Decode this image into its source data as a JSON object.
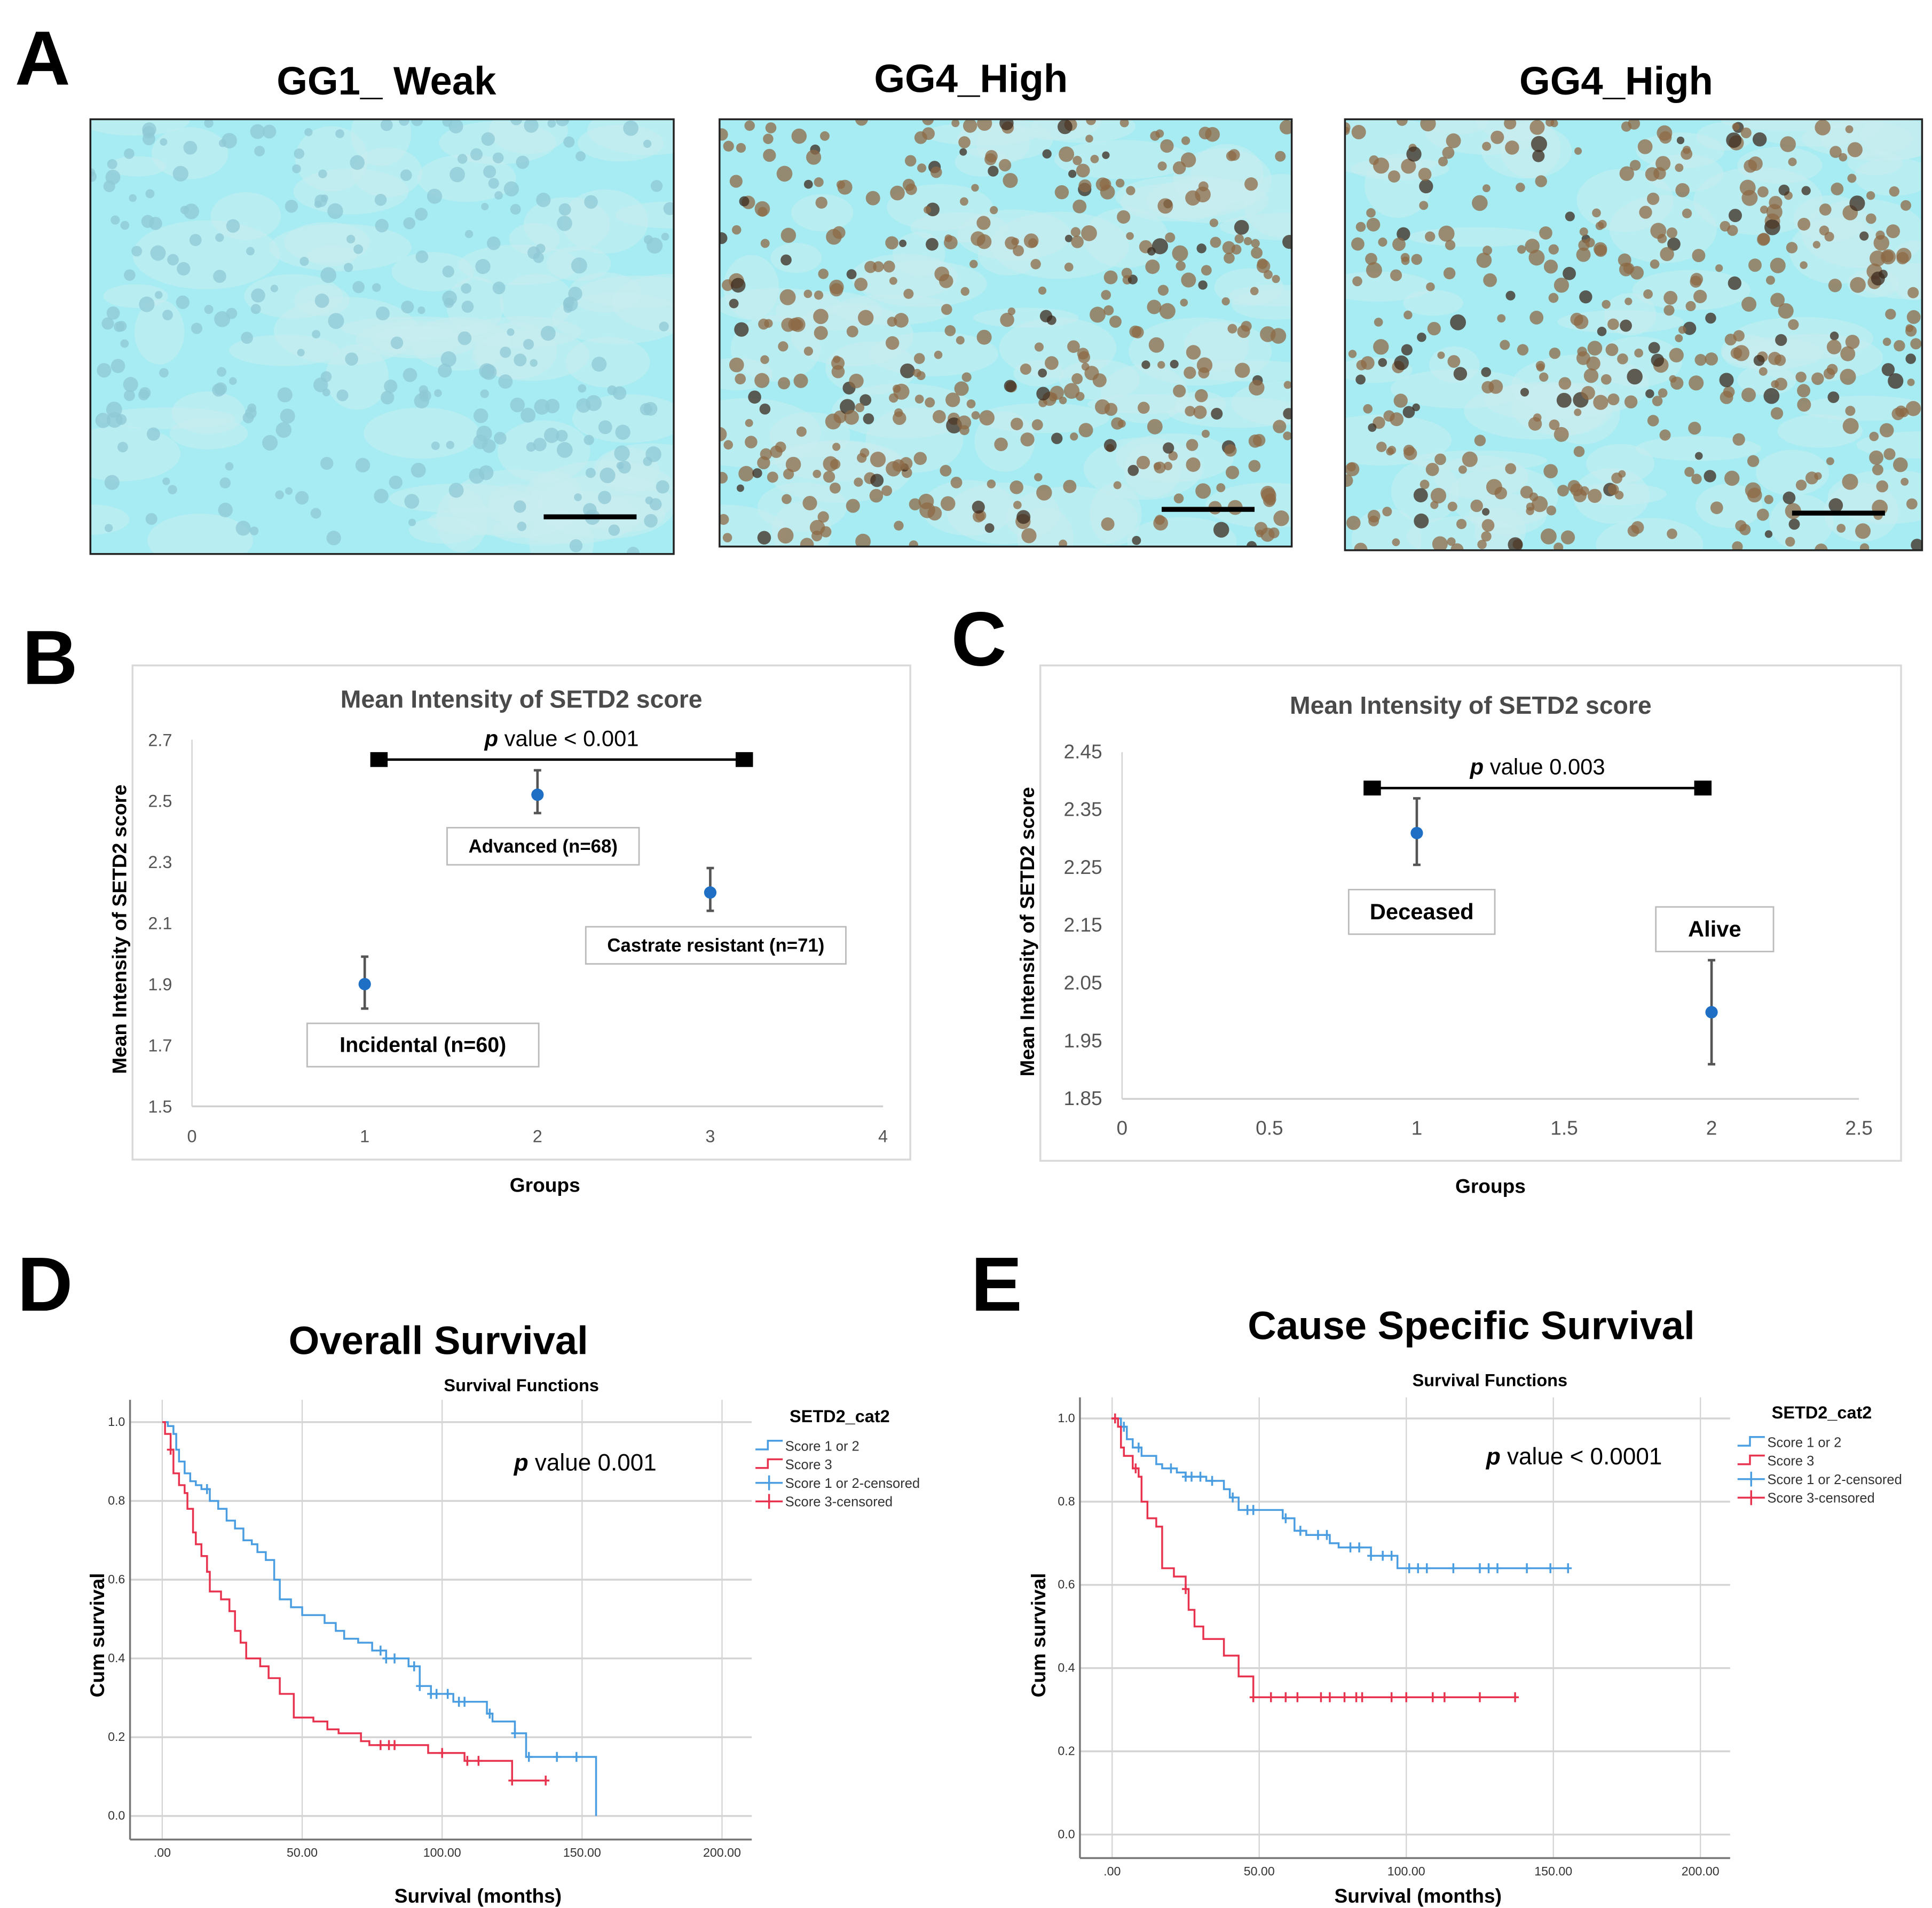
{
  "panel_letters": [
    "A",
    "B",
    "C",
    "D",
    "E"
  ],
  "panel_a": {
    "titles": [
      "GG1_ Weak",
      "GG4_High",
      "GG4_High"
    ],
    "colors": {
      "background": "#a6ecf2",
      "nuclei_weak": "#8fc8d6",
      "nuclei_high": "#8d6a45"
    }
  },
  "chart_data": [
    {
      "panel": "B",
      "type": "scatter",
      "title": "Mean Intensity of SETD2 score",
      "xlabel": "Groups",
      "ylabel": "Mean Intensity of SETD2 score",
      "xlim": [
        0,
        4
      ],
      "ylim": [
        1.5,
        2.7
      ],
      "xticks": [
        "0",
        "1",
        "2",
        "3",
        "4"
      ],
      "yticks": [
        "1.5",
        "1.7",
        "1.9",
        "2.1",
        "2.3",
        "2.5",
        "2.7"
      ],
      "points": [
        {
          "x": 1,
          "y": 1.9,
          "err_low": 1.82,
          "err_high": 1.99,
          "label": "Incidental (n=60)"
        },
        {
          "x": 2,
          "y": 2.52,
          "err_low": 2.46,
          "err_high": 2.6,
          "label": "Advanced (n=68)"
        },
        {
          "x": 3,
          "y": 2.2,
          "err_low": 2.14,
          "err_high": 2.28,
          "label": "Castrate resistant (n=71)"
        }
      ],
      "annotation": {
        "p": "p",
        "text": " value < 0.001"
      },
      "color": "#1f6fc5"
    },
    {
      "panel": "C",
      "type": "scatter",
      "title": "Mean Intensity of SETD2 score",
      "xlabel": "Groups",
      "ylabel": "Mean Intensity of SETD2 score",
      "xlim": [
        0,
        2.5
      ],
      "ylim": [
        1.85,
        2.45
      ],
      "xticks": [
        "0",
        "0.5",
        "1",
        "1.5",
        "2",
        "2.5"
      ],
      "yticks": [
        "1.85",
        "1.95",
        "2.05",
        "2.15",
        "2.25",
        "2.35",
        "2.45"
      ],
      "points": [
        {
          "x": 1,
          "y": 2.31,
          "err_low": 2.255,
          "err_high": 2.37,
          "label": "Deceased"
        },
        {
          "x": 2,
          "y": 2.0,
          "err_low": 1.91,
          "err_high": 2.09,
          "label": "Alive"
        }
      ],
      "annotation": {
        "p": "p",
        "text": " value 0.003"
      },
      "color": "#1f6fc5"
    },
    {
      "panel": "D",
      "type": "line",
      "heading": "Overall Survival",
      "title": "Survival Functions",
      "xlabel": "Survival (months)",
      "ylabel": "Cum survival",
      "xlim": [
        0,
        200
      ],
      "ylim": [
        0,
        1
      ],
      "xticks": [
        ".00",
        "50.00",
        "100.00",
        "150.00",
        "200.00"
      ],
      "yticks": [
        "0.0",
        "0.2",
        "0.4",
        "0.6",
        "0.8",
        "1.0"
      ],
      "legend_title": "SETD2_cat2",
      "legend": [
        "Score 1 or 2",
        "Score 3",
        "Score 1 or 2-censored",
        "Score 3-censored"
      ],
      "annotation": {
        "p": "p",
        "text": " value  0.001"
      },
      "series": [
        {
          "name": "Score 1 or 2",
          "color": "#4a9de0",
          "steps": [
            [
              0,
              1
            ],
            [
              2,
              0.99
            ],
            [
              4,
              0.97
            ],
            [
              5,
              0.93
            ],
            [
              6,
              0.9
            ],
            [
              8,
              0.87
            ],
            [
              10,
              0.85
            ],
            [
              12,
              0.84
            ],
            [
              14,
              0.83
            ],
            [
              17,
              0.8
            ],
            [
              20,
              0.78
            ],
            [
              23,
              0.75
            ],
            [
              26,
              0.73
            ],
            [
              29,
              0.7
            ],
            [
              32,
              0.69
            ],
            [
              34,
              0.67
            ],
            [
              37,
              0.65
            ],
            [
              40,
              0.6
            ],
            [
              42,
              0.55
            ],
            [
              46,
              0.53
            ],
            [
              50,
              0.51
            ],
            [
              58,
              0.49
            ],
            [
              62,
              0.47
            ],
            [
              65,
              0.45
            ],
            [
              70,
              0.44
            ],
            [
              75,
              0.42
            ],
            [
              80,
              0.4
            ],
            [
              88,
              0.38
            ],
            [
              92,
              0.33
            ],
            [
              96,
              0.31
            ],
            [
              104,
              0.29
            ],
            [
              116,
              0.26
            ],
            [
              118,
              0.24
            ],
            [
              126,
              0.21
            ],
            [
              130,
              0.15
            ],
            [
              155,
              0.15
            ],
            [
              155,
              0
            ]
          ],
          "censored": [
            16,
            78,
            80,
            83,
            90,
            92,
            96,
            98,
            102,
            106,
            108,
            117,
            126,
            131,
            141,
            148
          ]
        },
        {
          "name": "Score 3",
          "color": "#e8334f",
          "steps": [
            [
              0,
              1
            ],
            [
              1,
              0.97
            ],
            [
              3,
              0.93
            ],
            [
              4,
              0.87
            ],
            [
              6,
              0.84
            ],
            [
              8,
              0.82
            ],
            [
              9,
              0.78
            ],
            [
              11,
              0.72
            ],
            [
              12,
              0.69
            ],
            [
              14,
              0.66
            ],
            [
              16,
              0.62
            ],
            [
              17,
              0.57
            ],
            [
              21,
              0.55
            ],
            [
              24,
              0.52
            ],
            [
              26,
              0.47
            ],
            [
              28,
              0.44
            ],
            [
              30,
              0.4
            ],
            [
              35,
              0.38
            ],
            [
              38,
              0.35
            ],
            [
              42,
              0.31
            ],
            [
              47,
              0.25
            ],
            [
              54,
              0.24
            ],
            [
              59,
              0.22
            ],
            [
              63,
              0.21
            ],
            [
              71,
              0.19
            ],
            [
              74,
              0.18
            ],
            [
              95,
              0.16
            ],
            [
              108,
              0.14
            ],
            [
              125,
              0.09
            ],
            [
              137,
              0.09
            ]
          ],
          "censored": [
            3,
            78,
            81,
            83,
            100,
            109,
            113,
            125,
            137
          ]
        }
      ]
    },
    {
      "panel": "E",
      "type": "line",
      "heading": "Cause Specific Survival",
      "title": "Survival Functions",
      "xlabel": "Survival (months)",
      "ylabel": "Cum survival",
      "xlim": [
        0,
        200
      ],
      "ylim": [
        0,
        1
      ],
      "xticks": [
        ".00",
        "50.00",
        "100.00",
        "150.00",
        "200.00"
      ],
      "yticks": [
        "0.0",
        "0.2",
        "0.4",
        "0.6",
        "0.8",
        "1.0"
      ],
      "legend_title": "SETD2_cat2",
      "legend": [
        "Score 1 or 2",
        "Score 3",
        "Score 1 or 2-censored",
        "Score 3-censored"
      ],
      "annotation": {
        "p": "p",
        "text": " value  < 0.0001"
      },
      "series": [
        {
          "name": "Score 1 or 2",
          "color": "#4a9de0",
          "steps": [
            [
              0,
              1
            ],
            [
              3,
              0.98
            ],
            [
              5,
              0.95
            ],
            [
              7,
              0.93
            ],
            [
              10,
              0.91
            ],
            [
              15,
              0.89
            ],
            [
              17,
              0.88
            ],
            [
              22,
              0.87
            ],
            [
              25,
              0.86
            ],
            [
              32,
              0.85
            ],
            [
              38,
              0.83
            ],
            [
              40,
              0.81
            ],
            [
              43,
              0.78
            ],
            [
              58,
              0.76
            ],
            [
              62,
              0.73
            ],
            [
              66,
              0.72
            ],
            [
              74,
              0.7
            ],
            [
              77,
              0.69
            ],
            [
              88,
              0.67
            ],
            [
              97,
              0.64
            ],
            [
              155,
              0.64
            ]
          ],
          "censored": [
            4,
            9,
            20,
            25,
            27,
            30,
            34,
            41,
            46,
            48,
            59,
            64,
            70,
            73,
            81,
            84,
            88,
            92,
            95,
            101,
            104,
            107,
            116,
            125,
            128,
            131,
            141,
            149,
            155
          ]
        },
        {
          "name": "Score 3",
          "color": "#e8334f",
          "steps": [
            [
              0,
              1
            ],
            [
              2,
              0.98
            ],
            [
              3,
              0.93
            ],
            [
              4,
              0.91
            ],
            [
              7,
              0.88
            ],
            [
              9,
              0.86
            ],
            [
              10,
              0.8
            ],
            [
              12,
              0.76
            ],
            [
              15,
              0.74
            ],
            [
              17,
              0.64
            ],
            [
              21,
              0.62
            ],
            [
              25,
              0.59
            ],
            [
              26,
              0.54
            ],
            [
              28,
              0.5
            ],
            [
              31,
              0.47
            ],
            [
              38,
              0.43
            ],
            [
              43,
              0.38
            ],
            [
              48,
              0.33
            ],
            [
              137,
              0.33
            ]
          ],
          "censored": [
            1,
            8,
            25,
            48,
            54,
            59,
            63,
            71,
            74,
            79,
            83,
            85,
            95,
            100,
            109,
            113,
            125,
            137
          ]
        }
      ]
    }
  ]
}
